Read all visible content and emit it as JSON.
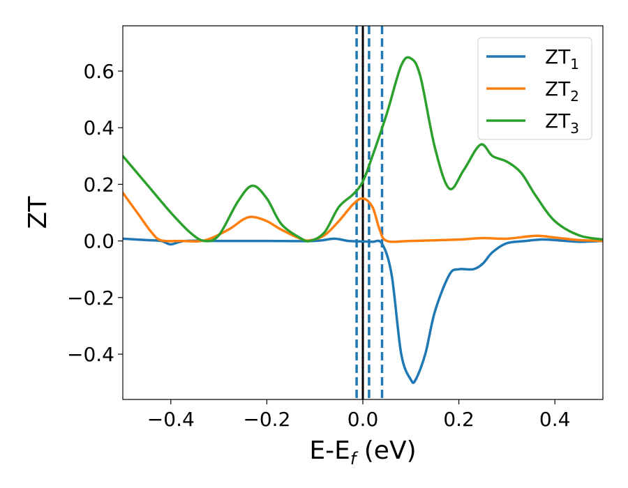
{
  "chart_data": {
    "type": "line",
    "xlabel": {
      "base": "E-E",
      "sub": "f",
      "tail": " (eV)"
    },
    "ylabel": "ZT",
    "xlim": [
      -0.5,
      0.5
    ],
    "ylim": [
      -0.56,
      0.76
    ],
    "grid": false,
    "legend_position": "top-right",
    "x_ticks": [
      {
        "value": -0.4,
        "label": "−0.4"
      },
      {
        "value": -0.2,
        "label": "−0.2"
      },
      {
        "value": 0.0,
        "label": "0.0"
      },
      {
        "value": 0.2,
        "label": "0.2"
      },
      {
        "value": 0.4,
        "label": "0.4"
      }
    ],
    "y_ticks": [
      {
        "value": -0.4,
        "label": "−0.4"
      },
      {
        "value": -0.2,
        "label": "−0.2"
      },
      {
        "value": 0.0,
        "label": "0.0"
      },
      {
        "value": 0.2,
        "label": "0.2"
      },
      {
        "value": 0.4,
        "label": "0.4"
      },
      {
        "value": 0.6,
        "label": "0.6"
      }
    ],
    "vertical_lines": [
      {
        "x": 0.0,
        "style": "solid",
        "color": "#000000"
      },
      {
        "x": -0.013,
        "style": "dashed",
        "color": "#1f77b4"
      },
      {
        "x": 0.013,
        "style": "dashed",
        "color": "#1f77b4"
      },
      {
        "x": 0.04,
        "style": "dashed",
        "color": "#1f77b4"
      }
    ],
    "series": [
      {
        "name": "ZT",
        "sub": "1",
        "color": "#1f77b4",
        "x": [
          -0.5,
          -0.45,
          -0.42,
          -0.4,
          -0.37,
          -0.3,
          -0.2,
          -0.1,
          -0.06,
          -0.03,
          0.0,
          0.02,
          0.04,
          0.06,
          0.08,
          0.1,
          0.11,
          0.13,
          0.15,
          0.18,
          0.2,
          0.23,
          0.25,
          0.27,
          0.3,
          0.34,
          0.37,
          0.4,
          0.45,
          0.5
        ],
        "values": [
          0.008,
          0.003,
          0.0,
          -0.012,
          0.0,
          0.0,
          0.0,
          0.0,
          0.008,
          0.0,
          -0.002,
          -0.003,
          -0.01,
          -0.12,
          -0.4,
          -0.49,
          -0.49,
          -0.4,
          -0.25,
          -0.12,
          -0.1,
          -0.1,
          -0.08,
          -0.04,
          -0.008,
          0.0,
          0.005,
          0.003,
          -0.003,
          0.0
        ]
      },
      {
        "name": "ZT",
        "sub": "2",
        "color": "#ff7f0e",
        "x": [
          -0.5,
          -0.47,
          -0.44,
          -0.42,
          -0.38,
          -0.33,
          -0.28,
          -0.25,
          -0.23,
          -0.2,
          -0.17,
          -0.13,
          -0.11,
          -0.08,
          -0.05,
          -0.02,
          0.0,
          0.02,
          0.035,
          0.05,
          0.1,
          0.2,
          0.25,
          0.3,
          0.36,
          0.4,
          0.45,
          0.5
        ],
        "values": [
          0.17,
          0.1,
          0.03,
          0.002,
          0.0,
          0.002,
          0.04,
          0.075,
          0.085,
          0.07,
          0.04,
          0.008,
          0.002,
          0.02,
          0.07,
          0.13,
          0.15,
          0.12,
          0.04,
          0.0,
          0.0,
          0.005,
          0.01,
          0.008,
          0.018,
          0.012,
          0.003,
          0.0
        ]
      },
      {
        "name": "ZT",
        "sub": "3",
        "color": "#2ca02c",
        "x": [
          -0.5,
          -0.45,
          -0.4,
          -0.36,
          -0.33,
          -0.3,
          -0.26,
          -0.23,
          -0.2,
          -0.17,
          -0.13,
          -0.11,
          -0.08,
          -0.05,
          -0.02,
          0.0,
          0.02,
          0.05,
          0.08,
          0.1,
          0.12,
          0.15,
          0.18,
          0.21,
          0.245,
          0.27,
          0.3,
          0.33,
          0.36,
          0.4,
          0.45,
          0.5
        ],
        "values": [
          0.3,
          0.2,
          0.1,
          0.03,
          0.0,
          0.02,
          0.14,
          0.195,
          0.15,
          0.06,
          0.01,
          0.0,
          0.03,
          0.12,
          0.165,
          0.21,
          0.3,
          0.45,
          0.62,
          0.645,
          0.58,
          0.33,
          0.185,
          0.25,
          0.34,
          0.3,
          0.28,
          0.24,
          0.16,
          0.07,
          0.02,
          0.005
        ]
      }
    ]
  }
}
